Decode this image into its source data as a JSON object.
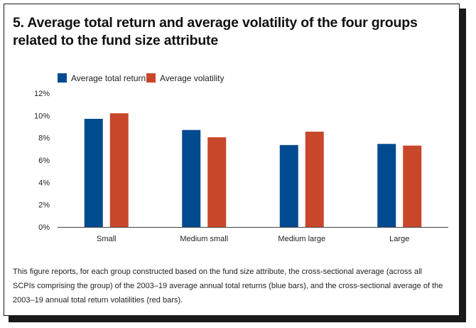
{
  "title": "5. Average total return and average volatility of the four groups related to the fund size attribute",
  "caption": "This figure reports, for each group constructed based on the fund size attribute, the cross-sectional average (across all SCPIs comprising the group) of the 2003–19 average annual total returns (blue bars), and the cross-sectional average of the 2003–19 annual total return volatilities (red bars).",
  "chart_data": {
    "type": "bar",
    "categories": [
      "Small",
      "Medium small",
      "Medium large",
      "Large"
    ],
    "series": [
      {
        "name": "Average total return",
        "color": "#004a8f",
        "values": [
          9.7,
          8.7,
          7.35,
          7.45
        ]
      },
      {
        "name": "Average volatility",
        "color": "#c8472a",
        "values": [
          10.2,
          8.05,
          8.55,
          7.3
        ]
      }
    ],
    "ylim": [
      0,
      12
    ],
    "yticks": [
      0,
      2,
      4,
      6,
      8,
      10,
      12
    ],
    "ytick_labels": [
      "0%",
      "2%",
      "4%",
      "6%",
      "8%",
      "10%",
      "12%"
    ],
    "legend_position": "top-left",
    "grid": false
  }
}
